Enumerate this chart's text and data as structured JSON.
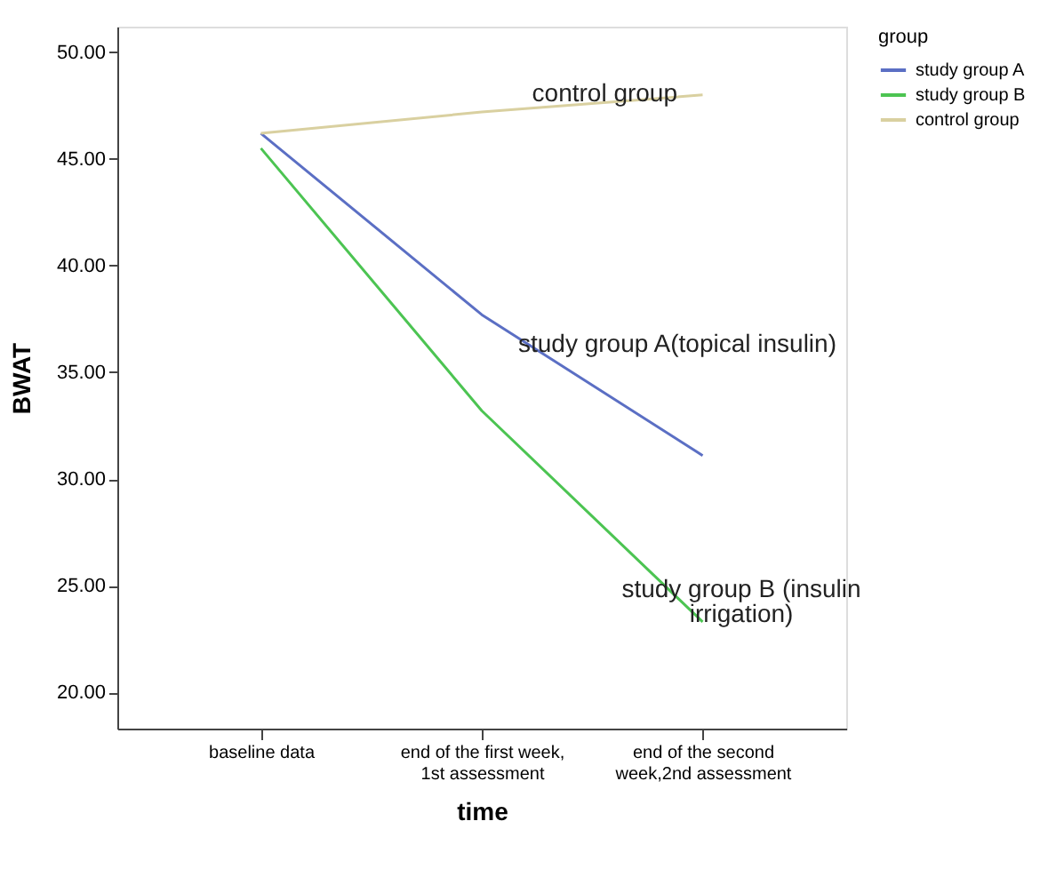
{
  "chart_data": {
    "type": "line",
    "xlabel": "time",
    "ylabel": "BWAT",
    "legend_title": "group",
    "legend": "top right",
    "grid": false,
    "marker": "none",
    "line_style": "solid",
    "categories": [
      "baseline data",
      "end of the first week, 1st assessment",
      "end of the second week,2nd assessment"
    ],
    "ylim": [
      18.3,
      51.2
    ],
    "yticks": [
      {
        "value": 20,
        "label": "20.00"
      },
      {
        "value": 25,
        "label": "25.00"
      },
      {
        "value": 30,
        "label": "30.00"
      },
      {
        "value": 35,
        "label": "35.00"
      },
      {
        "value": 40,
        "label": "40.00"
      },
      {
        "value": 45,
        "label": "45.00"
      },
      {
        "value": 50,
        "label": "50.00"
      }
    ],
    "series": [
      {
        "name": "study group A",
        "color": "#5b6fc4",
        "values": [
          46.2,
          37.7,
          31.1
        ]
      },
      {
        "name": "study group B",
        "color": "#4cc452",
        "values": [
          45.5,
          33.2,
          23.3
        ]
      },
      {
        "name": "control group",
        "color": "#d9d0a0",
        "values": [
          46.2,
          47.2,
          48.0
        ]
      }
    ],
    "annotations": [
      "control group",
      "study group A(topical insulin)",
      "study group B (insulin irrigation)"
    ]
  }
}
